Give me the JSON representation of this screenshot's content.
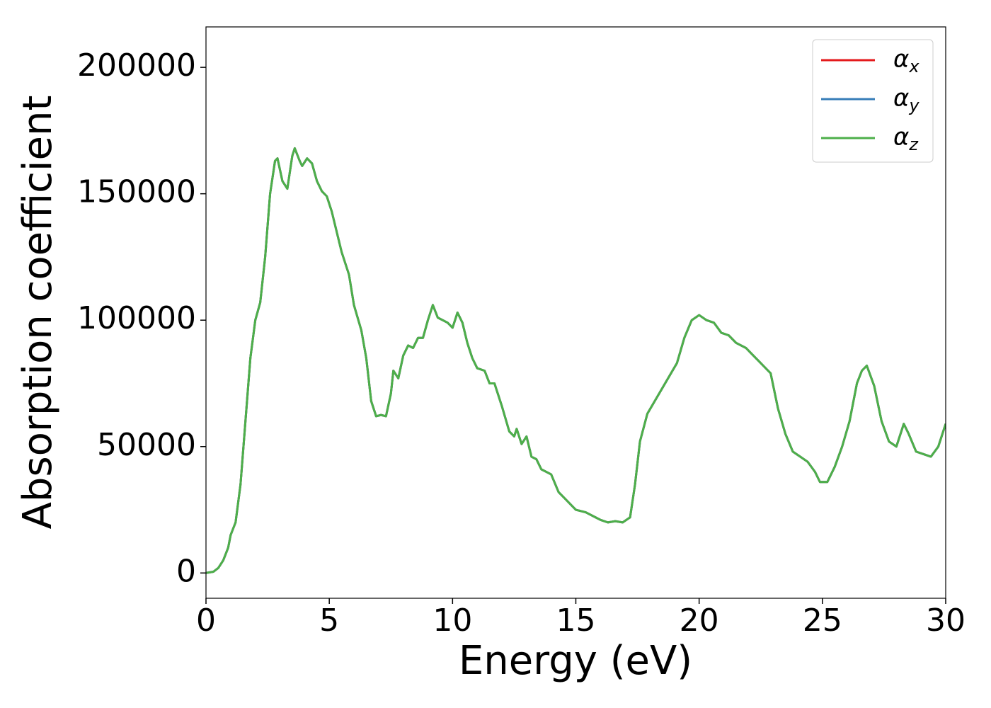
{
  "chart_data": {
    "type": "line",
    "xlabel": "Energy (eV)",
    "ylabel": "Absorption coefficient",
    "xlim": [
      0,
      30
    ],
    "ylim": [
      -10000,
      216000
    ],
    "xticks": [
      0,
      5,
      10,
      15,
      20,
      25,
      30
    ],
    "yticks": [
      0,
      50000,
      100000,
      150000,
      200000
    ],
    "legend": "upper right",
    "x": [
      0,
      0.3,
      0.5,
      0.7,
      0.9,
      1.0,
      1.2,
      1.4,
      1.6,
      1.8,
      2.0,
      2.2,
      2.4,
      2.6,
      2.8,
      2.9,
      3.1,
      3.3,
      3.5,
      3.6,
      3.8,
      3.9,
      4.1,
      4.3,
      4.5,
      4.7,
      4.9,
      5.1,
      5.3,
      5.5,
      5.8,
      6.0,
      6.3,
      6.5,
      6.7,
      6.9,
      7.1,
      7.3,
      7.5,
      7.6,
      7.8,
      8.0,
      8.2,
      8.4,
      8.6,
      8.8,
      9.0,
      9.2,
      9.4,
      9.6,
      9.8,
      10.0,
      10.2,
      10.4,
      10.6,
      10.8,
      11.0,
      11.3,
      11.5,
      11.7,
      12.0,
      12.3,
      12.5,
      12.6,
      12.8,
      13.0,
      13.2,
      13.4,
      13.6,
      13.8,
      14.0,
      14.3,
      14.6,
      15.0,
      15.4,
      15.8,
      16.0,
      16.3,
      16.6,
      16.9,
      17.2,
      17.4,
      17.6,
      17.9,
      18.2,
      18.5,
      18.8,
      19.1,
      19.4,
      19.7,
      20.0,
      20.3,
      20.6,
      20.9,
      21.2,
      21.5,
      21.9,
      22.3,
      22.6,
      22.9,
      23.2,
      23.5,
      23.8,
      24.1,
      24.4,
      24.7,
      24.9,
      25.2,
      25.5,
      25.8,
      26.1,
      26.4,
      26.6,
      26.8,
      27.1,
      27.4,
      27.7,
      28.0,
      28.3,
      28.5,
      28.8,
      29.1,
      29.4,
      29.7,
      30.0
    ],
    "series": [
      {
        "name": "αx",
        "color": "#e41a1c",
        "values": [
          0,
          500,
          2000,
          5000,
          10000,
          15000,
          20000,
          35000,
          60000,
          85000,
          100000,
          107000,
          125000,
          150000,
          163000,
          164000,
          155000,
          152000,
          165000,
          168000,
          163000,
          161000,
          164000,
          162000,
          155000,
          151000,
          149000,
          143000,
          135000,
          127000,
          118000,
          106000,
          96000,
          85000,
          68000,
          62000,
          62500,
          62000,
          71000,
          80000,
          77000,
          86000,
          90000,
          89000,
          93000,
          93000,
          100000,
          106000,
          101000,
          100000,
          99000,
          97000,
          103000,
          99000,
          91000,
          85000,
          81000,
          80000,
          75000,
          75000,
          66000,
          56000,
          54000,
          57000,
          51000,
          54000,
          46000,
          45000,
          41000,
          40000,
          39000,
          32000,
          29000,
          25000,
          24000,
          22000,
          21000,
          20000,
          20500,
          20000,
          22000,
          35000,
          52000,
          63000,
          68000,
          73000,
          78000,
          83000,
          93000,
          100000,
          102000,
          100000,
          99000,
          95000,
          94000,
          91000,
          89000,
          85000,
          82000,
          79000,
          65000,
          55000,
          48000,
          46000,
          44000,
          40000,
          36000,
          36000,
          42000,
          50000,
          60000,
          75000,
          80000,
          82000,
          74000,
          60000,
          52000,
          50000,
          59000,
          55000,
          48000,
          47000,
          46000,
          50000,
          59000
        ]
      },
      {
        "name": "αy",
        "color": "#377eb8",
        "values": [
          0,
          500,
          2000,
          5000,
          10000,
          15000,
          20000,
          35000,
          60000,
          85000,
          100000,
          107000,
          125000,
          150000,
          163000,
          164000,
          155000,
          152000,
          165000,
          168000,
          163000,
          161000,
          164000,
          162000,
          155000,
          151000,
          149000,
          143000,
          135000,
          127000,
          118000,
          106000,
          96000,
          85000,
          68000,
          62000,
          62500,
          62000,
          71000,
          80000,
          77000,
          86000,
          90000,
          89000,
          93000,
          93000,
          100000,
          106000,
          101000,
          100000,
          99000,
          97000,
          103000,
          99000,
          91000,
          85000,
          81000,
          80000,
          75000,
          75000,
          66000,
          56000,
          54000,
          57000,
          51000,
          54000,
          46000,
          45000,
          41000,
          40000,
          39000,
          32000,
          29000,
          25000,
          24000,
          22000,
          21000,
          20000,
          20500,
          20000,
          22000,
          35000,
          52000,
          63000,
          68000,
          73000,
          78000,
          83000,
          93000,
          100000,
          102000,
          100000,
          99000,
          95000,
          94000,
          91000,
          89000,
          85000,
          82000,
          79000,
          65000,
          55000,
          48000,
          46000,
          44000,
          40000,
          36000,
          36000,
          42000,
          50000,
          60000,
          75000,
          80000,
          82000,
          74000,
          60000,
          52000,
          50000,
          59000,
          55000,
          48000,
          47000,
          46000,
          50000,
          59000
        ]
      },
      {
        "name": "αz",
        "color": "#4daf4a",
        "values": [
          0,
          500,
          2000,
          5000,
          10000,
          15000,
          20000,
          35000,
          60000,
          85000,
          100000,
          107000,
          125000,
          150000,
          163000,
          164000,
          155000,
          152000,
          165000,
          168000,
          163000,
          161000,
          164000,
          162000,
          155000,
          151000,
          149000,
          143000,
          135000,
          127000,
          118000,
          106000,
          96000,
          85000,
          68000,
          62000,
          62500,
          62000,
          71000,
          80000,
          77000,
          86000,
          90000,
          89000,
          93000,
          93000,
          100000,
          106000,
          101000,
          100000,
          99000,
          97000,
          103000,
          99000,
          91000,
          85000,
          81000,
          80000,
          75000,
          75000,
          66000,
          56000,
          54000,
          57000,
          51000,
          54000,
          46000,
          45000,
          41000,
          40000,
          39000,
          32000,
          29000,
          25000,
          24000,
          22000,
          21000,
          20000,
          20500,
          20000,
          22000,
          35000,
          52000,
          63000,
          68000,
          73000,
          78000,
          83000,
          93000,
          100000,
          102000,
          100000,
          99000,
          95000,
          94000,
          91000,
          89000,
          85000,
          82000,
          79000,
          65000,
          55000,
          48000,
          46000,
          44000,
          40000,
          36000,
          36000,
          42000,
          50000,
          60000,
          75000,
          80000,
          82000,
          74000,
          60000,
          52000,
          50000,
          59000,
          55000,
          48000,
          47000,
          46000,
          50000,
          59000
        ]
      }
    ]
  }
}
